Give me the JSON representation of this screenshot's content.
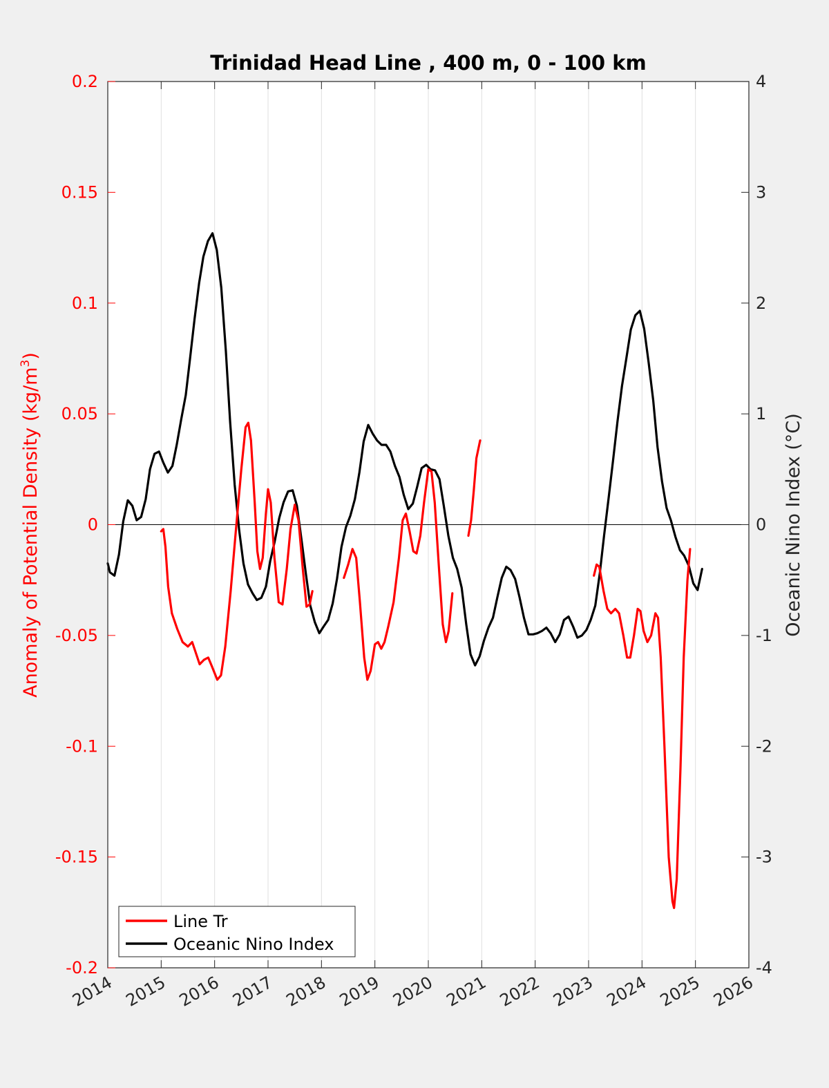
{
  "chart_data": {
    "type": "line",
    "title": "Trinidad Head Line , 400 m, 0 - 100 km",
    "xlabel": "",
    "ylabel_left": "Anomaly of Potential Density (kg/m",
    "ylabel_left_sup": "3",
    "ylabel_left_close": ")",
    "ylabel_right": "Oceanic Nino Index (°C)",
    "xlim": [
      2014,
      2026
    ],
    "ylim_left": [
      -0.2,
      0.2
    ],
    "ylim_right": [
      -4,
      4
    ],
    "x_ticks": [
      "2014",
      "2015",
      "2016",
      "2017",
      "2018",
      "2019",
      "2020",
      "2021",
      "2022",
      "2023",
      "2024",
      "2025",
      "2026"
    ],
    "y_left_ticks": [
      "-0.2",
      "-0.15",
      "-0.1",
      "-0.05",
      "0",
      "0.05",
      "0.1",
      "0.15",
      "0.2"
    ],
    "y_right_ticks": [
      "-4",
      "-3",
      "-2",
      "-1",
      "0",
      "1",
      "2",
      "3",
      "4"
    ],
    "grid": "vertical",
    "legend_position": "bottom-left",
    "colors": {
      "line_tr": "#ff0000",
      "oni": "#000000"
    },
    "series": [
      {
        "name": "Line Tr",
        "axis": "left",
        "segments": [
          [
            [
              2015.0,
              -0.003
            ],
            [
              2015.04,
              -0.002
            ],
            [
              2015.08,
              -0.01
            ],
            [
              2015.13,
              -0.028
            ],
            [
              2015.2,
              -0.04
            ],
            [
              2015.3,
              -0.047
            ],
            [
              2015.4,
              -0.053
            ],
            [
              2015.5,
              -0.055
            ],
            [
              2015.58,
              -0.053
            ],
            [
              2015.65,
              -0.058
            ],
            [
              2015.72,
              -0.063
            ],
            [
              2015.8,
              -0.061
            ],
            [
              2015.88,
              -0.06
            ],
            [
              2015.95,
              -0.064
            ],
            [
              2016.05,
              -0.07
            ],
            [
              2016.12,
              -0.068
            ],
            [
              2016.2,
              -0.055
            ],
            [
              2016.3,
              -0.03
            ],
            [
              2016.4,
              -0.002
            ],
            [
              2016.5,
              0.025
            ],
            [
              2016.58,
              0.044
            ],
            [
              2016.63,
              0.046
            ],
            [
              2016.68,
              0.038
            ],
            [
              2016.75,
              0.01
            ],
            [
              2016.8,
              -0.012
            ],
            [
              2016.85,
              -0.02
            ],
            [
              2016.9,
              -0.015
            ],
            [
              2016.96,
              0.005
            ],
            [
              2017.0,
              0.016
            ],
            [
              2017.05,
              0.01
            ],
            [
              2017.12,
              -0.015
            ],
            [
              2017.2,
              -0.035
            ],
            [
              2017.27,
              -0.036
            ],
            [
              2017.35,
              -0.02
            ],
            [
              2017.42,
              -0.002
            ],
            [
              2017.5,
              0.009
            ],
            [
              2017.57,
              0.002
            ],
            [
              2017.65,
              -0.02
            ],
            [
              2017.72,
              -0.037
            ],
            [
              2017.78,
              -0.036
            ],
            [
              2017.83,
              -0.03
            ]
          ],
          [
            [
              2018.42,
              -0.024
            ],
            [
              2018.5,
              -0.018
            ],
            [
              2018.58,
              -0.011
            ],
            [
              2018.65,
              -0.015
            ],
            [
              2018.72,
              -0.035
            ],
            [
              2018.8,
              -0.06
            ],
            [
              2018.86,
              -0.07
            ],
            [
              2018.92,
              -0.066
            ],
            [
              2019.0,
              -0.054
            ],
            [
              2019.06,
              -0.053
            ],
            [
              2019.12,
              -0.056
            ],
            [
              2019.18,
              -0.053
            ],
            [
              2019.25,
              -0.046
            ],
            [
              2019.35,
              -0.035
            ],
            [
              2019.45,
              -0.015
            ],
            [
              2019.52,
              0.002
            ],
            [
              2019.58,
              0.005
            ],
            [
              2019.65,
              -0.003
            ],
            [
              2019.72,
              -0.012
            ],
            [
              2019.78,
              -0.013
            ],
            [
              2019.85,
              -0.005
            ],
            [
              2019.92,
              0.01
            ],
            [
              2020.0,
              0.025
            ],
            [
              2020.06,
              0.024
            ],
            [
              2020.12,
              0.01
            ],
            [
              2020.2,
              -0.02
            ],
            [
              2020.27,
              -0.045
            ],
            [
              2020.33,
              -0.053
            ],
            [
              2020.38,
              -0.048
            ],
            [
              2020.45,
              -0.031
            ]
          ],
          [
            [
              2020.75,
              -0.005
            ],
            [
              2020.8,
              0.002
            ],
            [
              2020.85,
              0.015
            ],
            [
              2020.9,
              0.03
            ],
            [
              2020.97,
              0.038
            ]
          ],
          [
            [
              2023.1,
              -0.023
            ],
            [
              2023.15,
              -0.018
            ],
            [
              2023.2,
              -0.019
            ],
            [
              2023.28,
              -0.03
            ],
            [
              2023.35,
              -0.038
            ],
            [
              2023.42,
              -0.04
            ],
            [
              2023.5,
              -0.038
            ],
            [
              2023.57,
              -0.04
            ],
            [
              2023.65,
              -0.05
            ],
            [
              2023.72,
              -0.06
            ],
            [
              2023.78,
              -0.06
            ],
            [
              2023.85,
              -0.05
            ],
            [
              2023.92,
              -0.038
            ],
            [
              2023.97,
              -0.039
            ],
            [
              2024.03,
              -0.048
            ],
            [
              2024.1,
              -0.053
            ],
            [
              2024.17,
              -0.05
            ],
            [
              2024.25,
              -0.04
            ],
            [
              2024.3,
              -0.042
            ],
            [
              2024.35,
              -0.06
            ],
            [
              2024.42,
              -0.1
            ],
            [
              2024.5,
              -0.15
            ],
            [
              2024.57,
              -0.17
            ],
            [
              2024.6,
              -0.173
            ],
            [
              2024.65,
              -0.16
            ],
            [
              2024.72,
              -0.11
            ],
            [
              2024.78,
              -0.06
            ],
            [
              2024.85,
              -0.025
            ],
            [
              2024.9,
              -0.011
            ]
          ]
        ]
      },
      {
        "name": "Oceanic Nino Index",
        "axis": "right",
        "segments": [
          [
            [
              2014.0,
              -0.35
            ],
            [
              2014.04,
              -0.43
            ],
            [
              2014.125,
              -0.46
            ],
            [
              2014.21,
              -0.27
            ],
            [
              2014.29,
              0.03
            ],
            [
              2014.375,
              0.22
            ],
            [
              2014.46,
              0.17
            ],
            [
              2014.54,
              0.04
            ],
            [
              2014.625,
              0.07
            ],
            [
              2014.71,
              0.23
            ],
            [
              2014.79,
              0.5
            ],
            [
              2014.875,
              0.64
            ],
            [
              2014.96,
              0.66
            ],
            [
              2015.04,
              0.56
            ],
            [
              2015.125,
              0.47
            ],
            [
              2015.21,
              0.53
            ],
            [
              2015.29,
              0.72
            ],
            [
              2015.375,
              0.95
            ],
            [
              2015.46,
              1.17
            ],
            [
              2015.54,
              1.5
            ],
            [
              2015.625,
              1.86
            ],
            [
              2015.71,
              2.18
            ],
            [
              2015.79,
              2.42
            ],
            [
              2015.875,
              2.56
            ],
            [
              2015.96,
              2.63
            ],
            [
              2016.04,
              2.48
            ],
            [
              2016.125,
              2.14
            ],
            [
              2016.21,
              1.57
            ],
            [
              2016.29,
              0.93
            ],
            [
              2016.375,
              0.36
            ],
            [
              2016.46,
              -0.05
            ],
            [
              2016.54,
              -0.35
            ],
            [
              2016.625,
              -0.54
            ],
            [
              2016.71,
              -0.62
            ],
            [
              2016.79,
              -0.68
            ],
            [
              2016.875,
              -0.66
            ],
            [
              2016.96,
              -0.56
            ],
            [
              2017.04,
              -0.33
            ],
            [
              2017.125,
              -0.15
            ],
            [
              2017.21,
              0.06
            ],
            [
              2017.29,
              0.2
            ],
            [
              2017.375,
              0.3
            ],
            [
              2017.46,
              0.31
            ],
            [
              2017.54,
              0.17
            ],
            [
              2017.625,
              -0.13
            ],
            [
              2017.71,
              -0.45
            ],
            [
              2017.79,
              -0.73
            ],
            [
              2017.875,
              -0.88
            ],
            [
              2017.96,
              -0.98
            ],
            [
              2018.04,
              -0.92
            ],
            [
              2018.125,
              -0.86
            ],
            [
              2018.21,
              -0.71
            ],
            [
              2018.29,
              -0.49
            ],
            [
              2018.375,
              -0.2
            ],
            [
              2018.46,
              -0.02
            ],
            [
              2018.54,
              0.08
            ],
            [
              2018.625,
              0.23
            ],
            [
              2018.71,
              0.47
            ],
            [
              2018.79,
              0.75
            ],
            [
              2018.875,
              0.9
            ],
            [
              2018.96,
              0.82
            ],
            [
              2019.04,
              0.76
            ],
            [
              2019.125,
              0.72
            ],
            [
              2019.21,
              0.72
            ],
            [
              2019.29,
              0.66
            ],
            [
              2019.375,
              0.53
            ],
            [
              2019.46,
              0.43
            ],
            [
              2019.54,
              0.27
            ],
            [
              2019.625,
              0.14
            ],
            [
              2019.71,
              0.19
            ],
            [
              2019.79,
              0.34
            ],
            [
              2019.875,
              0.51
            ],
            [
              2019.96,
              0.54
            ],
            [
              2020.04,
              0.5
            ],
            [
              2020.125,
              0.49
            ],
            [
              2020.21,
              0.41
            ],
            [
              2020.29,
              0.17
            ],
            [
              2020.375,
              -0.1
            ],
            [
              2020.46,
              -0.3
            ],
            [
              2020.54,
              -0.4
            ],
            [
              2020.625,
              -0.57
            ],
            [
              2020.71,
              -0.9
            ],
            [
              2020.79,
              -1.17
            ],
            [
              2020.875,
              -1.27
            ],
            [
              2020.96,
              -1.19
            ],
            [
              2021.04,
              -1.05
            ],
            [
              2021.125,
              -0.93
            ],
            [
              2021.21,
              -0.84
            ],
            [
              2021.29,
              -0.66
            ],
            [
              2021.375,
              -0.48
            ],
            [
              2021.46,
              -0.38
            ],
            [
              2021.54,
              -0.41
            ],
            [
              2021.625,
              -0.49
            ],
            [
              2021.71,
              -0.66
            ],
            [
              2021.79,
              -0.84
            ],
            [
              2021.875,
              -0.99
            ],
            [
              2021.96,
              -0.99
            ],
            [
              2022.04,
              -0.98
            ],
            [
              2022.125,
              -0.96
            ],
            [
              2022.21,
              -0.93
            ],
            [
              2022.29,
              -0.98
            ],
            [
              2022.375,
              -1.06
            ],
            [
              2022.46,
              -0.99
            ],
            [
              2022.54,
              -0.86
            ],
            [
              2022.625,
              -0.83
            ],
            [
              2022.71,
              -0.92
            ],
            [
              2022.79,
              -1.02
            ],
            [
              2022.875,
              -1.0
            ],
            [
              2022.96,
              -0.95
            ],
            [
              2023.04,
              -0.86
            ],
            [
              2023.125,
              -0.73
            ],
            [
              2023.21,
              -0.44
            ],
            [
              2023.29,
              -0.1
            ],
            [
              2023.375,
              0.24
            ],
            [
              2023.46,
              0.59
            ],
            [
              2023.54,
              0.93
            ],
            [
              2023.625,
              1.25
            ],
            [
              2023.71,
              1.51
            ],
            [
              2023.79,
              1.76
            ],
            [
              2023.875,
              1.89
            ],
            [
              2023.96,
              1.93
            ],
            [
              2024.04,
              1.77
            ],
            [
              2024.125,
              1.46
            ],
            [
              2024.21,
              1.12
            ],
            [
              2024.29,
              0.7
            ],
            [
              2024.375,
              0.39
            ],
            [
              2024.46,
              0.15
            ],
            [
              2024.54,
              0.04
            ],
            [
              2024.625,
              -0.11
            ],
            [
              2024.71,
              -0.23
            ],
            [
              2024.79,
              -0.28
            ],
            [
              2024.875,
              -0.37
            ],
            [
              2024.96,
              -0.53
            ],
            [
              2025.04,
              -0.59
            ],
            [
              2025.125,
              -0.4
            ]
          ]
        ]
      }
    ]
  }
}
